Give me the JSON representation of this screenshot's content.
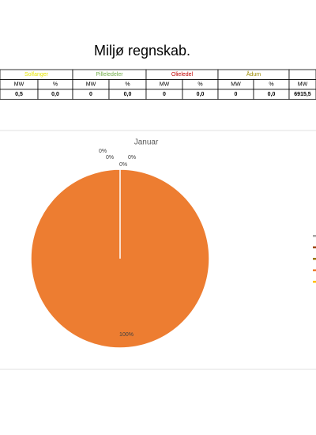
{
  "title": "Miljø regnskab.",
  "table": {
    "groups": [
      {
        "label": "Solfanger",
        "color": "#e6e600"
      },
      {
        "label": "Pilleledeler",
        "color": "#70ad47"
      },
      {
        "label": "Olieledel",
        "color": "#c00000"
      },
      {
        "label": "Ådum",
        "color": "#9c8b00"
      },
      {
        "label": "",
        "color": "#000000"
      }
    ],
    "subheaders": [
      "MW",
      "%",
      "MW",
      "%",
      "MW",
      "%",
      "MW",
      "%",
      "MW"
    ],
    "rows": [
      [
        "0,5",
        "0,0",
        "0",
        "0,0",
        "0",
        "0,0",
        "0",
        "0,0",
        "6915,5"
      ]
    ]
  },
  "chart_data": {
    "type": "pie",
    "title": "Januar",
    "values": [
      0,
      0,
      0,
      0,
      100
    ],
    "value_labels": [
      "0%",
      "0%",
      "0%",
      "0%",
      "100%"
    ],
    "colors": [
      "#ffc000",
      "#a5a5a5",
      "#9e480e",
      "#997300",
      "#ed7d31"
    ]
  }
}
